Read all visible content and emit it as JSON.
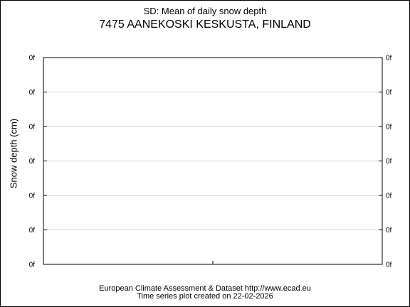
{
  "chart_data": {
    "type": "line",
    "title": "SD: Mean of daily snow depth",
    "subtitle": "7475 AANEKOSKI KESKUSTA, FINLAND",
    "ylabel": "Snow depth (cm)",
    "xlabel": "",
    "y_tick_labels": [
      "0f",
      "0f",
      "0f",
      "0f",
      "0f",
      "0f",
      "0f"
    ],
    "x_tick_labels": [],
    "series": [],
    "grid": true,
    "legend": "none"
  },
  "footer": {
    "line1": "European Climate Assessment & Dataset  http://www.ecad.eu",
    "line2": "Time series plot created on 22-02-2026"
  },
  "colors": {
    "grid": "#d3d3d3",
    "axes": "#000000"
  }
}
